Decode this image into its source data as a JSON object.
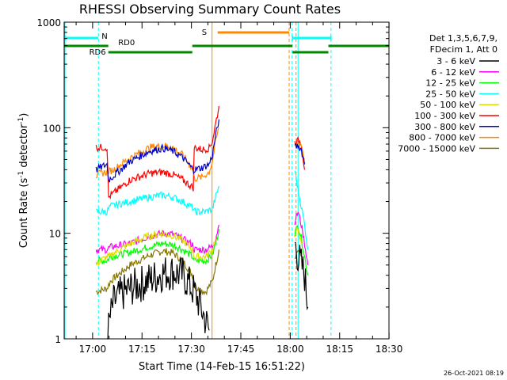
{
  "chart_data": {
    "type": "line",
    "title": "RHESSI Observing Summary Count Rates",
    "xlabel": "Start Time (14-Feb-15 16:51:22)",
    "ylabel_main": "Count Rate (s",
    "ylabel_exp1": "-1",
    "ylabel_mid": " detector",
    "ylabel_exp2": "-1",
    "ylabel_end": ")",
    "x_start_minutes": 0,
    "x_end_minutes": 98.6,
    "x_ticks": [
      {
        "label": "17:00",
        "m": 8.63
      },
      {
        "label": "17:15",
        "m": 23.63
      },
      {
        "label": "17:30",
        "m": 38.63
      },
      {
        "label": "17:45",
        "m": 53.63
      },
      {
        "label": "18:00",
        "m": 68.63
      },
      {
        "label": "18:15",
        "m": 83.63
      },
      {
        "label": "18:30",
        "m": 98.63
      }
    ],
    "y_scale": "log",
    "ylim": [
      1,
      1000
    ],
    "y_ticks": [
      {
        "label": "1",
        "v": 1
      },
      {
        "label": "10",
        "v": 10
      },
      {
        "label": "100",
        "v": 100
      },
      {
        "label": "1000",
        "v": 1000
      }
    ],
    "legend": {
      "placement": "right",
      "header1": "Det 1,3,5,6,7,9,",
      "header2": "FDecim 1, Att 0"
    },
    "series": [
      {
        "name": "3 - 6 keV",
        "color": "#000000",
        "segments": [
          [
            [
              13,
              1
            ],
            [
              14,
              1.6
            ],
            [
              15,
              2.2
            ],
            [
              17,
              2.6
            ],
            [
              20,
              3.0
            ],
            [
              25,
              3.5
            ],
            [
              30,
              4.2
            ],
            [
              33,
              4.3
            ],
            [
              36,
              4.0
            ],
            [
              38,
              3.3
            ],
            [
              40,
              2.6
            ],
            [
              42,
              1.8
            ],
            [
              44,
              1.2
            ]
          ],
          [
            [
              70,
              8
            ],
            [
              71,
              6
            ],
            [
              72,
              5
            ],
            [
              73,
              4
            ],
            [
              74,
              2
            ]
          ]
        ]
      },
      {
        "name": "6 - 12 keV",
        "color": "#ff00ff",
        "segments": [
          [
            [
              9.7,
              7
            ],
            [
              13,
              7
            ],
            [
              14,
              7.4
            ],
            [
              20,
              8
            ],
            [
              26,
              9.4
            ],
            [
              30,
              10
            ],
            [
              33,
              9.8
            ],
            [
              36,
              8.8
            ],
            [
              39,
              7.8
            ],
            [
              39.5,
              7
            ],
            [
              43,
              7
            ],
            [
              45,
              7.5
            ],
            [
              46,
              9
            ],
            [
              47,
              12
            ]
          ],
          [
            [
              70,
              13
            ],
            [
              71,
              16
            ],
            [
              72,
              12
            ],
            [
              73,
              8
            ],
            [
              74,
              5
            ]
          ]
        ]
      },
      {
        "name": "12 - 25 keV",
        "color": "#00ff00",
        "segments": [
          [
            [
              9.7,
              5.5
            ],
            [
              13,
              5.5
            ],
            [
              14,
              6
            ],
            [
              20,
              6.6
            ],
            [
              26,
              7.5
            ],
            [
              30,
              8
            ],
            [
              33,
              7.8
            ],
            [
              36,
              7
            ],
            [
              39,
              6
            ],
            [
              39.5,
              5.5
            ],
            [
              43,
              5.5
            ],
            [
              45,
              6.2
            ],
            [
              46,
              8
            ],
            [
              47,
              11
            ]
          ],
          [
            [
              70,
              10
            ],
            [
              71,
              12
            ],
            [
              72,
              9
            ],
            [
              73,
              6
            ],
            [
              74,
              4
            ]
          ]
        ]
      },
      {
        "name": "25 - 50 keV",
        "color": "#00ffff",
        "segments": [
          [
            [
              9.7,
              16
            ],
            [
              13,
              16
            ],
            [
              14,
              18
            ],
            [
              20,
              20
            ],
            [
              26,
              22
            ],
            [
              30,
              23
            ],
            [
              33,
              22
            ],
            [
              36,
              20
            ],
            [
              39,
              17.5
            ],
            [
              39.5,
              16
            ],
            [
              43,
              16
            ],
            [
              45,
              17
            ],
            [
              46,
              22
            ],
            [
              47,
              28
            ]
          ],
          [
            [
              70,
              40
            ],
            [
              71,
              26
            ],
            [
              72,
              18
            ],
            [
              73,
              12
            ],
            [
              74,
              7
            ]
          ]
        ]
      },
      {
        "name": "50 - 100 keV",
        "color": "#dddd00",
        "segments": [
          [
            [
              9.7,
              5
            ],
            [
              11,
              5.5
            ],
            [
              13,
              6
            ],
            [
              14,
              6
            ],
            [
              15,
              6.5
            ],
            [
              20,
              8
            ],
            [
              26,
              9.5
            ],
            [
              30,
              10
            ],
            [
              33,
              9.5
            ],
            [
              36,
              8.5
            ],
            [
              39,
              7
            ],
            [
              39.5,
              6
            ],
            [
              43,
              6
            ],
            [
              45,
              7
            ],
            [
              46,
              9
            ]
          ],
          [
            [
              70,
              9
            ],
            [
              71,
              11
            ],
            [
              72,
              8
            ]
          ]
        ]
      },
      {
        "name": "100 - 300 keV",
        "color": "#ff0000",
        "segments": [
          [
            [
              9.7,
              65
            ],
            [
              13,
              65
            ],
            [
              13.5,
              22
            ],
            [
              15,
              24
            ],
            [
              20,
              32
            ],
            [
              26,
              37
            ],
            [
              30,
              38
            ],
            [
              33,
              36
            ],
            [
              36,
              32
            ],
            [
              39.2,
              27
            ],
            [
              39.5,
              65
            ],
            [
              42,
              62
            ],
            [
              44,
              64
            ],
            [
              45,
              75
            ],
            [
              46,
              110
            ],
            [
              47,
              160
            ]
          ],
          [
            [
              70,
              72
            ],
            [
              71,
              75
            ],
            [
              72,
              72
            ],
            [
              73,
              40
            ]
          ]
        ]
      },
      {
        "name": "300 - 800 keV",
        "color": "#0000cc",
        "segments": [
          [
            [
              9.7,
              40
            ],
            [
              11,
              42
            ],
            [
              13,
              45
            ],
            [
              13.5,
              32
            ],
            [
              15,
              35
            ],
            [
              20,
              48
            ],
            [
              26,
              60
            ],
            [
              30,
              64
            ],
            [
              33,
              60
            ],
            [
              36,
              52
            ],
            [
              39.2,
              40
            ],
            [
              39.5,
              40
            ],
            [
              42,
              42
            ],
            [
              44,
              45
            ],
            [
              45,
              55
            ],
            [
              46,
              85
            ],
            [
              47,
              120
            ]
          ],
          [
            [
              70,
              65
            ],
            [
              71,
              68
            ],
            [
              72,
              62
            ],
            [
              73,
              45
            ]
          ]
        ]
      },
      {
        "name": "800 - 7000 keV",
        "color": "#ff8800",
        "segments": [
          [
            [
              9.7,
              35
            ],
            [
              11,
              37
            ],
            [
              13,
              38
            ],
            [
              15,
              40
            ],
            [
              20,
              52
            ],
            [
              26,
              65
            ],
            [
              30,
              68
            ],
            [
              33,
              65
            ],
            [
              36,
              55
            ],
            [
              39.2,
              40
            ],
            [
              39.5,
              33
            ],
            [
              42,
              34
            ],
            [
              44,
              38
            ],
            [
              45,
              48
            ],
            [
              46,
              75
            ],
            [
              47,
              100
            ]
          ],
          [
            [
              70,
              70
            ],
            [
              71,
              72
            ],
            [
              72,
              70
            ],
            [
              73,
              50
            ]
          ]
        ]
      },
      {
        "name": "7000 - 15000 keV",
        "color": "#887700",
        "segments": [
          [
            [
              9.7,
              2.8
            ],
            [
              13,
              3
            ],
            [
              14,
              3.5
            ],
            [
              20,
              5
            ],
            [
              26,
              6.2
            ],
            [
              30,
              6.8
            ],
            [
              33,
              6.5
            ],
            [
              36,
              5.5
            ],
            [
              39,
              4
            ],
            [
              40,
              3
            ],
            [
              43,
              2.8
            ],
            [
              45,
              3.5
            ],
            [
              46,
              5
            ],
            [
              47,
              7
            ]
          ],
          [
            [
              70,
              6
            ],
            [
              71,
              7
            ],
            [
              72,
              6
            ]
          ]
        ]
      }
    ],
    "overlays": {
      "attenuator_line": {
        "color": "#00ffff",
        "segments": [
          [
            0.3,
            10.4
          ],
          [
            69.3,
            81
          ]
        ],
        "markers_x": [
          0.3,
          69.3,
          81
        ],
        "label": "N",
        "label_m": 10.4
      },
      "decim_line": {
        "color": "#008800",
        "high_segments": [
          [
            0,
            13.4
          ],
          [
            38.9,
            69.3
          ],
          [
            80.2,
            98.6
          ]
        ],
        "low_segments": [
          [
            13.4,
            38.9
          ],
          [
            69.3,
            80.2
          ]
        ],
        "label_rd6": "RD6",
        "label_rd6_m": 7.6,
        "label_rd0": "RD0",
        "label_rd0_m": 16.4
      },
      "saa_line": {
        "color": "#ff8800",
        "segment": [
          46.6,
          68.3
        ],
        "label": "S",
        "label_m": 44.9
      },
      "night_lines_cyan": [
        10.4,
        69.2,
        71,
        81
      ],
      "day_lines_orange": [
        44.9,
        68.3,
        70.4
      ]
    },
    "timestamp": "26-Oct-2021 08:19"
  }
}
